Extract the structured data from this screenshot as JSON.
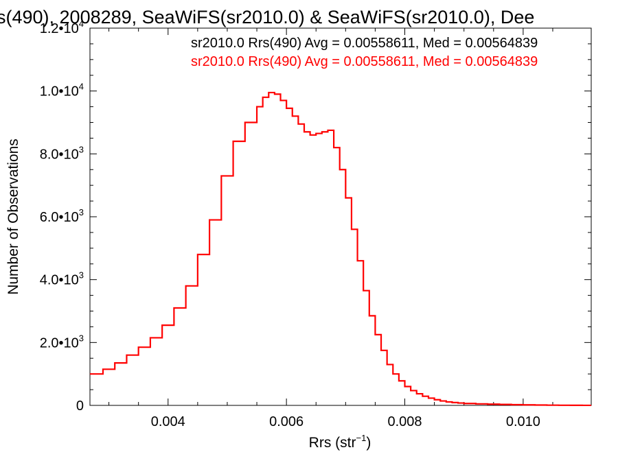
{
  "chart_data": {
    "type": "histogram",
    "title": "s(490), 2008289, SeaWiFS(sr2010.0) & SeaWiFS(sr2010.0), Dee",
    "xlabel": "Rrs (str",
    "xlabel_exp": "−1",
    "xlabel_suffix": ")",
    "ylabel": "Number of Observations",
    "xlim": [
      0.00268,
      0.01115
    ],
    "ylim": [
      0,
      12000
    ],
    "x_ticks": [
      {
        "value": 0.004,
        "label": "0.004"
      },
      {
        "value": 0.006,
        "label": "0.006"
      },
      {
        "value": 0.008,
        "label": "0.008"
      },
      {
        "value": 0.01,
        "label": "0.010"
      }
    ],
    "y_ticks": [
      {
        "value": 0,
        "mant": "0",
        "exp": ""
      },
      {
        "value": 2000,
        "mant": "2.0•10",
        "exp": "3"
      },
      {
        "value": 4000,
        "mant": "4.0•10",
        "exp": "3"
      },
      {
        "value": 6000,
        "mant": "6.0•10",
        "exp": "3"
      },
      {
        "value": 8000,
        "mant": "8.0•10",
        "exp": "3"
      },
      {
        "value": 10000,
        "mant": "1.0•10",
        "exp": "4"
      },
      {
        "value": 12000,
        "mant": "1.2•10",
        "exp": "4"
      }
    ],
    "legend": [
      {
        "text": "sr2010.0 Rrs(490) Avg = 0.00558611, Med = 0.00564839",
        "color": "#000000"
      },
      {
        "text": "sr2010.0 Rrs(490) Avg = 0.00558611, Med = 0.00564839",
        "color": "#ff0000"
      }
    ],
    "series": [
      {
        "color": "#ff0000",
        "step": "post",
        "x": [
          0.00268,
          0.0029,
          0.0031,
          0.0033,
          0.0035,
          0.0037,
          0.0039,
          0.0041,
          0.0043,
          0.0045,
          0.0047,
          0.0049,
          0.0051,
          0.0053,
          0.0055,
          0.0056,
          0.0057,
          0.0058,
          0.0059,
          0.006,
          0.0061,
          0.0062,
          0.0063,
          0.0064,
          0.0065,
          0.0066,
          0.0067,
          0.0068,
          0.0069,
          0.007,
          0.0071,
          0.0072,
          0.0073,
          0.0074,
          0.0075,
          0.0076,
          0.0077,
          0.0078,
          0.0079,
          0.008,
          0.0081,
          0.0082,
          0.0083,
          0.0084,
          0.0085,
          0.0086,
          0.0087,
          0.0088,
          0.0089,
          0.009,
          0.0092,
          0.0094,
          0.0096,
          0.0098,
          0.01,
          0.0102,
          0.0104,
          0.0106,
          0.0108,
          0.011,
          0.01115
        ],
        "y": [
          1000,
          1150,
          1350,
          1600,
          1850,
          2150,
          2550,
          3100,
          3800,
          4800,
          5900,
          7300,
          8400,
          9000,
          9500,
          9800,
          9950,
          9900,
          9700,
          9450,
          9200,
          8950,
          8700,
          8600,
          8650,
          8700,
          8750,
          8200,
          7500,
          6600,
          5600,
          4600,
          3650,
          2850,
          2250,
          1750,
          1300,
          1000,
          780,
          600,
          470,
          370,
          290,
          230,
          180,
          140,
          110,
          90,
          75,
          60,
          48,
          38,
          30,
          22,
          16,
          11,
          7,
          4,
          2,
          1,
          1
        ]
      }
    ]
  }
}
